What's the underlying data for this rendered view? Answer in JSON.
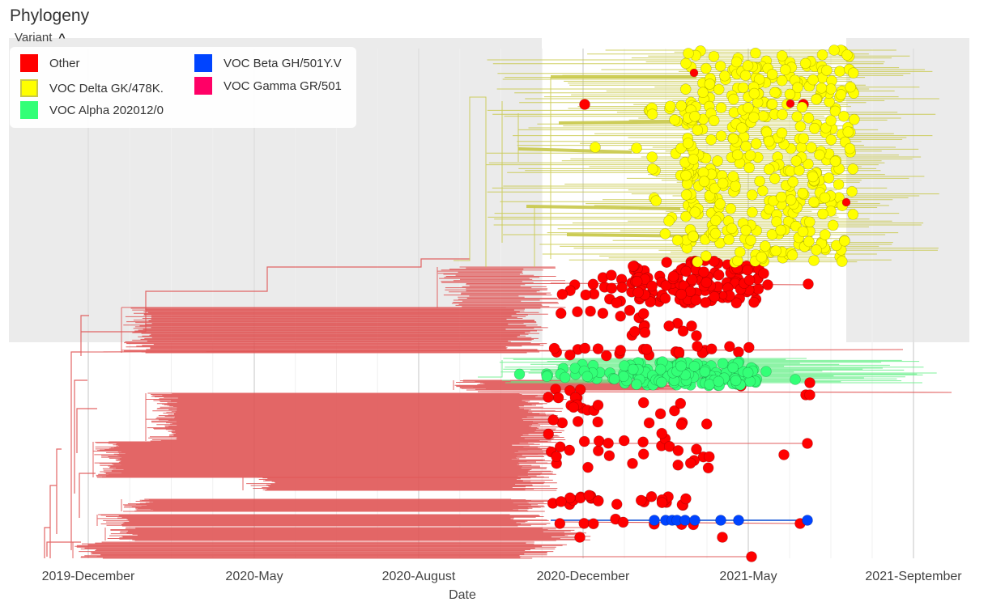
{
  "header": {
    "title": "Phylogeny"
  },
  "legend": {
    "toggle_label": "Variant",
    "items": [
      {
        "label": "Other",
        "color": "#ff0000"
      },
      {
        "label": "VOC Delta GK/478K.",
        "color": "#ffff00"
      },
      {
        "label": "VOC Alpha 202012/0",
        "color": "#33ff77"
      },
      {
        "label": "VOC Beta GH/501Y.V",
        "color": "#0044ff"
      },
      {
        "label": "VOC Gamma GR/501",
        "color": "#ff0066"
      }
    ]
  },
  "chart_data": {
    "type": "scatter",
    "title": "Phylogeny",
    "xlabel": "Date",
    "ylabel": "",
    "x_ticks": [
      "2019-December",
      "2020-May",
      "2020-August",
      "2020-December",
      "2021-May",
      "2021-September"
    ],
    "grid": "vertical",
    "legend_position": "top-left",
    "series": [
      {
        "name": "Other",
        "color": "#ff0000"
      },
      {
        "name": "VOC Delta GK/478K.",
        "color": "#ffff00"
      },
      {
        "name": "VOC Alpha 202012/0",
        "color": "#33ff77"
      },
      {
        "name": "VOC Beta GH/501Y.V",
        "color": "#0044ff"
      },
      {
        "name": "VOC Gamma GR/501",
        "color": "#ff0066"
      }
    ]
  }
}
